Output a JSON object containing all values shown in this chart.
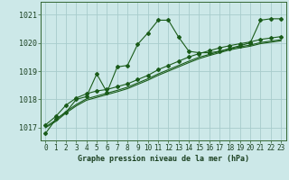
{
  "title": "Graphe pression niveau de la mer (hPa)",
  "bg_color": "#cce8e8",
  "grid_color": "#a8cccc",
  "line_color": "#1a5c1a",
  "xlim": [
    -0.5,
    23.5
  ],
  "ylim": [
    1016.55,
    1021.45
  ],
  "yticks": [
    1017,
    1018,
    1019,
    1020,
    1021
  ],
  "xticks": [
    0,
    1,
    2,
    3,
    4,
    5,
    6,
    7,
    8,
    9,
    10,
    11,
    12,
    13,
    14,
    15,
    16,
    17,
    18,
    19,
    20,
    21,
    22,
    23
  ],
  "series1_y": [
    1016.8,
    1017.3,
    1017.55,
    1018.0,
    1018.1,
    1018.9,
    1018.25,
    1019.15,
    1019.2,
    1019.95,
    1020.35,
    1020.8,
    1020.8,
    1020.2,
    1019.7,
    1019.65,
    1019.65,
    1019.7,
    1019.8,
    1019.9,
    1020.0,
    1020.8,
    1020.85,
    1020.85
  ],
  "series2_y": [
    1017.1,
    1017.4,
    1017.8,
    1018.05,
    1018.2,
    1018.3,
    1018.35,
    1018.45,
    1018.55,
    1018.7,
    1018.85,
    1019.05,
    1019.2,
    1019.35,
    1019.5,
    1019.62,
    1019.72,
    1019.82,
    1019.9,
    1019.97,
    1020.03,
    1020.12,
    1020.17,
    1020.22
  ],
  "series3_y": [
    1017.0,
    1017.22,
    1017.52,
    1017.77,
    1017.97,
    1018.07,
    1018.17,
    1018.27,
    1018.38,
    1018.53,
    1018.68,
    1018.85,
    1019.0,
    1019.15,
    1019.3,
    1019.44,
    1019.55,
    1019.65,
    1019.75,
    1019.82,
    1019.88,
    1019.97,
    1020.02,
    1020.07
  ],
  "series4_y": [
    1017.03,
    1017.27,
    1017.57,
    1017.82,
    1018.02,
    1018.12,
    1018.22,
    1018.32,
    1018.43,
    1018.58,
    1018.73,
    1018.9,
    1019.05,
    1019.2,
    1019.35,
    1019.49,
    1019.59,
    1019.69,
    1019.79,
    1019.86,
    1019.92,
    1020.01,
    1020.06,
    1020.11
  ],
  "tick_fontsize": 5.5,
  "label_fontsize": 6.0,
  "title_fontsize": 6.0,
  "linewidth": 0.8,
  "markersize": 2.0
}
